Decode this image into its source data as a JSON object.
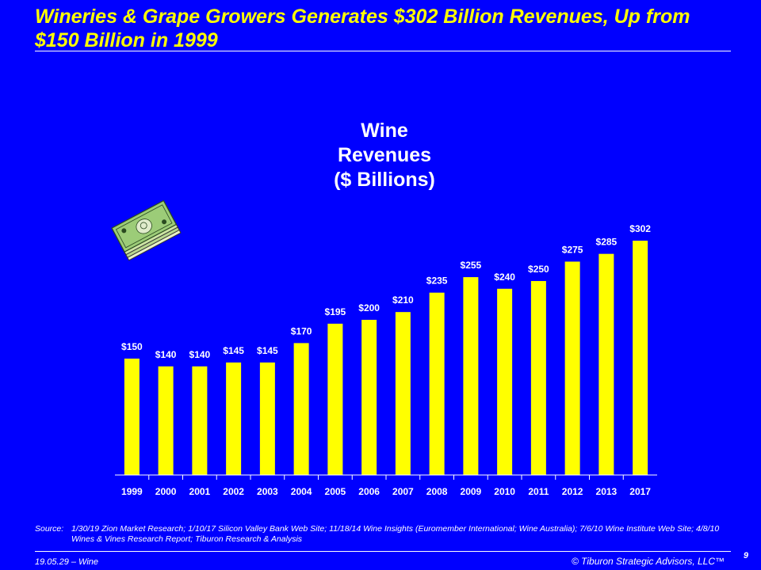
{
  "slide": {
    "title": "Wineries & Grape Growers Generates $302 Billion Revenues, Up from $150 Billion in 1999",
    "source_label": "Source:",
    "source_text": "1/30/19 Zion Market Research; 1/10/17 Silicon Valley Bank Web Site; 11/18/14 Wine Insights (Euromember International; Wine Australia); 7/6/10 Wine Institute Web Site; 4/8/10 Wines & Vines Research Report; Tiburon Research & Analysis",
    "footer_left": "19.05.29 – Wine",
    "footer_right": "© Tiburon Strategic Advisors, LLC™",
    "page_number": "9",
    "icon": "money-stack-icon"
  },
  "colors": {
    "background": "#0000ff",
    "title": "#ffff00",
    "bar": "#ffff00",
    "text": "#ffffff"
  },
  "chart_data": {
    "type": "bar",
    "title_lines": [
      "Wine",
      "Revenues",
      "($ Billions)"
    ],
    "categories": [
      "1999",
      "2000",
      "2001",
      "2002",
      "2003",
      "2004",
      "2005",
      "2006",
      "2007",
      "2008",
      "2009",
      "2010",
      "2011",
      "2012",
      "2013",
      "2017"
    ],
    "values": [
      150,
      140,
      140,
      145,
      145,
      170,
      195,
      200,
      210,
      235,
      255,
      240,
      250,
      275,
      285,
      302
    ],
    "data_labels": [
      "$150",
      "$140",
      "$140",
      "$145",
      "$145",
      "$170",
      "$195",
      "$200",
      "$210",
      "$235",
      "$255",
      "$240",
      "$250",
      "$275",
      "$285",
      "$302"
    ],
    "xlabel": "",
    "ylabel": "",
    "ylim": [
      0,
      302
    ],
    "grid": false,
    "legend": "none"
  }
}
